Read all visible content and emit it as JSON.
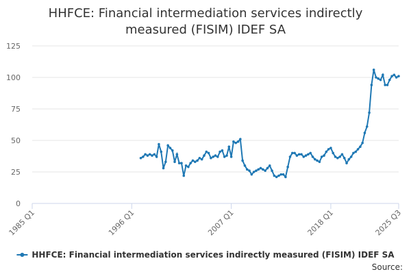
{
  "chart_data": {
    "type": "line",
    "title": "HHFCE: Financial intermediation services indirectly measured (FISIM) IDEF SA",
    "categories": [
      "1985 Q1",
      null,
      null,
      null,
      null,
      null,
      null,
      null,
      null,
      null,
      null,
      null,
      null,
      null,
      null,
      null,
      null,
      null,
      null,
      null,
      null,
      null,
      null,
      null,
      null,
      null,
      null,
      null,
      null,
      null,
      null,
      null,
      null,
      null,
      null,
      null,
      null,
      null,
      null,
      null,
      null,
      null,
      null,
      null,
      "1996 Q1",
      null,
      null,
      null,
      null,
      null,
      null,
      null,
      null,
      null,
      null,
      null,
      null,
      null,
      null,
      null,
      null,
      null,
      null,
      null,
      null,
      null,
      null,
      null,
      null,
      null,
      null,
      null,
      null,
      null,
      null,
      null,
      null,
      null,
      null,
      null,
      null,
      null,
      null,
      null,
      null,
      null,
      null,
      null,
      "2007 Q1",
      null,
      null,
      null,
      null,
      null,
      null,
      null,
      null,
      null,
      null,
      null,
      null,
      null,
      null,
      null,
      null,
      null,
      null,
      null,
      null,
      null,
      null,
      null,
      null,
      null,
      null,
      null,
      null,
      null,
      null,
      null,
      null,
      null,
      null,
      null,
      null,
      null,
      null,
      null,
      null,
      null,
      null,
      null,
      "2018 Q1",
      null,
      null,
      null,
      null,
      null,
      null,
      null,
      null,
      null,
      null,
      null,
      null,
      null,
      null,
      null,
      null,
      null,
      null,
      null,
      null,
      null,
      null,
      null,
      null,
      null,
      null,
      null,
      null,
      null,
      "2025 Q3"
    ],
    "series": [
      {
        "name": "HHFCE: Financial intermediation services indirectly measured (FISIM) IDEF SA",
        "color": "#1f78b4",
        "values": [
          null,
          null,
          null,
          null,
          null,
          null,
          null,
          null,
          null,
          null,
          null,
          null,
          null,
          null,
          null,
          null,
          null,
          null,
          null,
          null,
          null,
          null,
          null,
          null,
          null,
          null,
          null,
          null,
          null,
          null,
          null,
          null,
          null,
          null,
          null,
          null,
          null,
          null,
          null,
          null,
          null,
          null,
          null,
          null,
          null,
          null,
          null,
          null,
          36,
          37,
          39,
          38,
          39,
          38,
          39,
          37,
          47,
          41,
          28,
          33,
          46,
          44,
          42,
          33,
          39,
          32,
          32,
          22,
          30,
          29,
          32,
          34,
          33,
          34,
          36,
          35,
          38,
          41,
          40,
          36,
          37,
          38,
          37,
          41,
          42,
          37,
          38,
          45,
          37,
          49,
          48,
          49,
          51,
          34,
          30,
          27,
          26,
          23,
          25,
          26,
          27,
          28,
          27,
          26,
          28,
          30,
          26,
          22,
          21,
          22,
          23,
          23,
          21,
          29,
          37,
          40,
          40,
          38,
          39,
          39,
          37,
          38,
          39,
          40,
          37,
          35,
          34,
          33,
          37,
          38,
          41,
          43,
          44,
          40,
          37,
          36,
          37,
          39,
          36,
          32,
          35,
          37,
          40,
          41,
          43,
          45,
          48,
          56,
          61,
          72,
          94,
          106,
          100,
          99,
          98,
          102,
          94,
          94,
          98,
          101,
          102,
          100,
          101
        ]
      }
    ],
    "ylim": [
      0,
      125
    ],
    "yticks": [
      0,
      25,
      50,
      75,
      100,
      125
    ],
    "grid": true,
    "legend": "bottom",
    "source": "Source:"
  }
}
